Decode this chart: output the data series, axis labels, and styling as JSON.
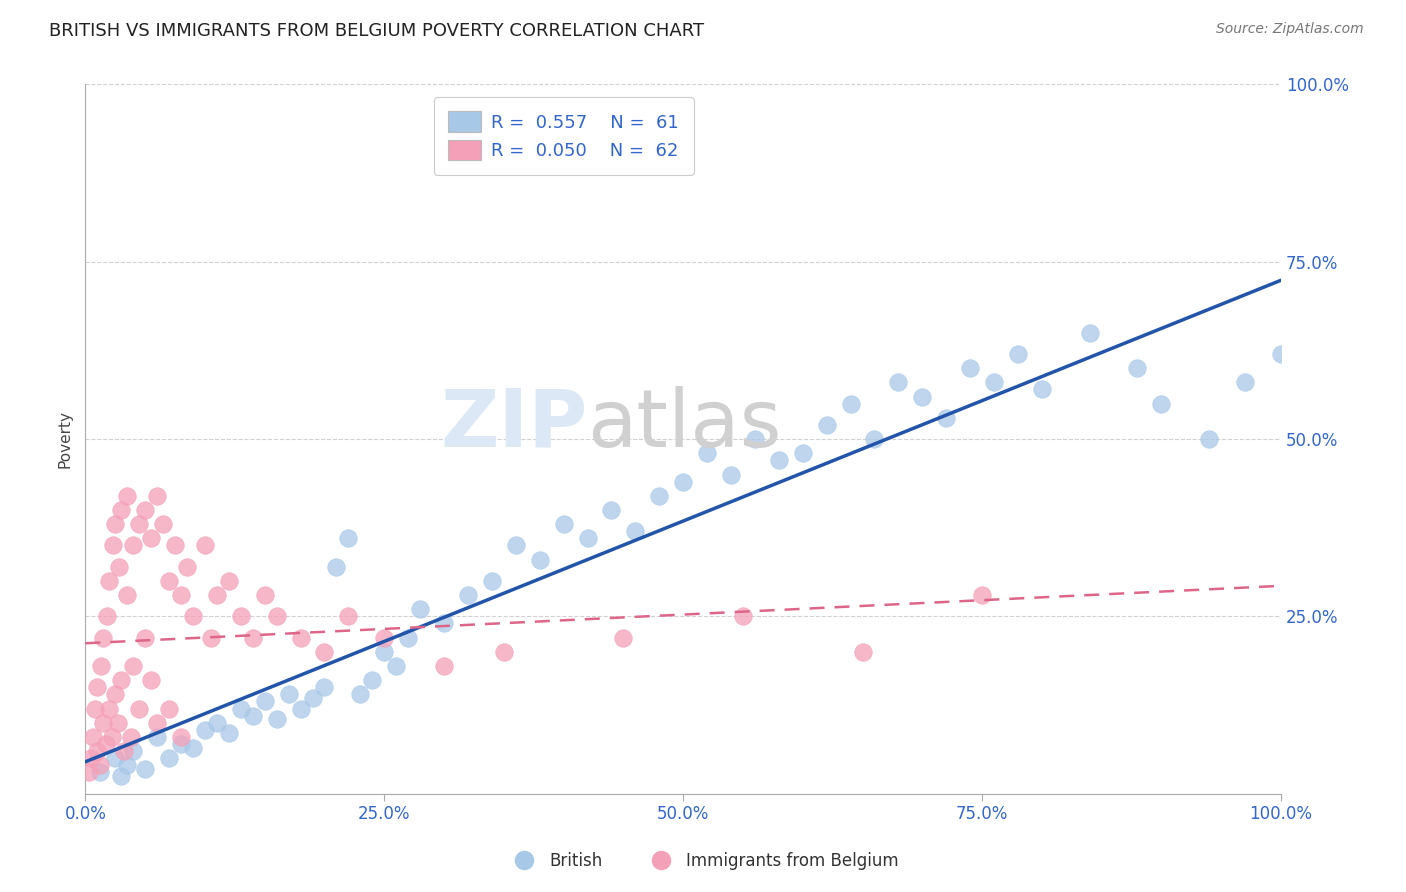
{
  "title": "BRITISH VS IMMIGRANTS FROM BELGIUM POVERTY CORRELATION CHART",
  "source": "Source: ZipAtlas.com",
  "ylabel": "Poverty",
  "R_british": 0.557,
  "N_british": 61,
  "R_belgium": 0.05,
  "N_belgium": 62,
  "blue_scatter_color": "#a8c8e8",
  "pink_scatter_color": "#f4a0b8",
  "blue_line_color": "#2255aa",
  "pink_line_color": "#dd6688",
  "background_color": "#ffffff",
  "blue_legend_color": "#a8c8e8",
  "pink_legend_color": "#f4a0b8",
  "british_x": [
    1.2,
    2.5,
    3.0,
    3.5,
    4.0,
    5.0,
    6.0,
    7.0,
    8.0,
    9.0,
    10.0,
    11.0,
    12.0,
    13.0,
    14.0,
    15.0,
    16.0,
    17.0,
    18.0,
    19.0,
    20.0,
    21.0,
    22.0,
    23.0,
    24.0,
    25.0,
    26.0,
    27.0,
    28.0,
    30.0,
    32.0,
    34.0,
    36.0,
    38.0,
    40.0,
    42.0,
    44.0,
    46.0,
    48.0,
    50.0,
    52.0,
    54.0,
    56.0,
    58.0,
    60.0,
    62.0,
    64.0,
    66.0,
    68.0,
    70.0,
    72.0,
    74.0,
    76.0,
    78.0,
    80.0,
    84.0,
    88.0,
    90.0,
    94.0,
    97.0,
    100.0
  ],
  "british_y": [
    3.0,
    5.0,
    2.5,
    4.0,
    6.0,
    3.5,
    8.0,
    5.0,
    7.0,
    6.5,
    9.0,
    10.0,
    8.5,
    12.0,
    11.0,
    13.0,
    10.5,
    14.0,
    12.0,
    13.5,
    15.0,
    32.0,
    36.0,
    14.0,
    16.0,
    20.0,
    18.0,
    22.0,
    26.0,
    24.0,
    28.0,
    30.0,
    35.0,
    33.0,
    38.0,
    36.0,
    40.0,
    37.0,
    42.0,
    44.0,
    48.0,
    45.0,
    50.0,
    47.0,
    48.0,
    52.0,
    55.0,
    50.0,
    58.0,
    56.0,
    53.0,
    60.0,
    58.0,
    62.0,
    57.0,
    65.0,
    60.0,
    55.0,
    50.0,
    58.0,
    62.0
  ],
  "belgium_x": [
    0.3,
    0.5,
    0.6,
    0.8,
    1.0,
    1.0,
    1.2,
    1.3,
    1.5,
    1.5,
    1.7,
    1.8,
    2.0,
    2.0,
    2.2,
    2.3,
    2.5,
    2.5,
    2.7,
    2.8,
    3.0,
    3.0,
    3.2,
    3.5,
    3.5,
    3.8,
    4.0,
    4.0,
    4.5,
    4.5,
    5.0,
    5.0,
    5.5,
    5.5,
    6.0,
    6.0,
    6.5,
    7.0,
    7.0,
    7.5,
    8.0,
    8.0,
    8.5,
    9.0,
    10.0,
    10.5,
    11.0,
    12.0,
    13.0,
    14.0,
    15.0,
    16.0,
    18.0,
    20.0,
    22.0,
    25.0,
    30.0,
    35.0,
    45.0,
    55.0,
    65.0,
    75.0
  ],
  "belgium_y": [
    3.0,
    5.0,
    8.0,
    12.0,
    6.0,
    15.0,
    4.0,
    18.0,
    10.0,
    22.0,
    7.0,
    25.0,
    12.0,
    30.0,
    8.0,
    35.0,
    14.0,
    38.0,
    10.0,
    32.0,
    16.0,
    40.0,
    6.0,
    28.0,
    42.0,
    8.0,
    35.0,
    18.0,
    38.0,
    12.0,
    40.0,
    22.0,
    36.0,
    16.0,
    42.0,
    10.0,
    38.0,
    30.0,
    12.0,
    35.0,
    28.0,
    8.0,
    32.0,
    25.0,
    35.0,
    22.0,
    28.0,
    30.0,
    25.0,
    22.0,
    28.0,
    25.0,
    22.0,
    20.0,
    25.0,
    22.0,
    18.0,
    20.0,
    22.0,
    25.0,
    20.0,
    28.0
  ]
}
